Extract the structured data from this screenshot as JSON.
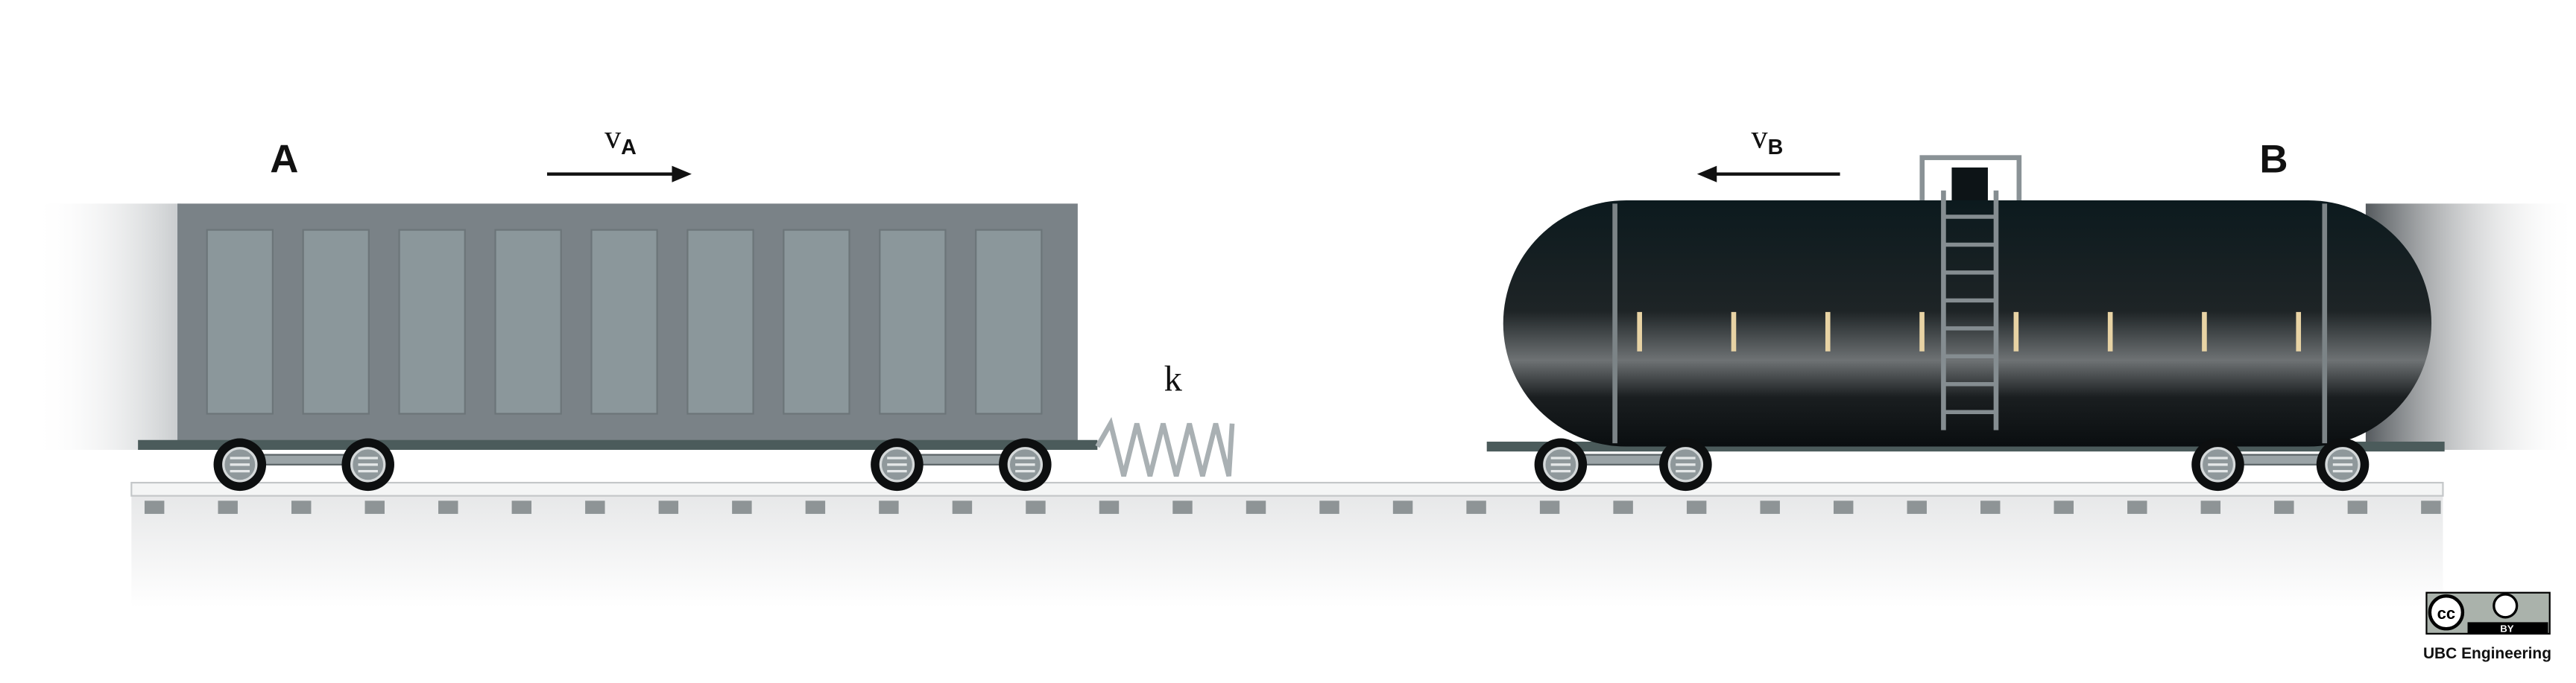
{
  "labels": {
    "car_a": "A",
    "velocity_a": {
      "symbol": "v",
      "subscript": "A"
    },
    "spring": "k",
    "velocity_b": {
      "symbol": "v",
      "subscript": "B"
    },
    "car_b": "B"
  },
  "license": {
    "cc": "cc",
    "by": "BY",
    "credit": "UBC Engineering"
  }
}
